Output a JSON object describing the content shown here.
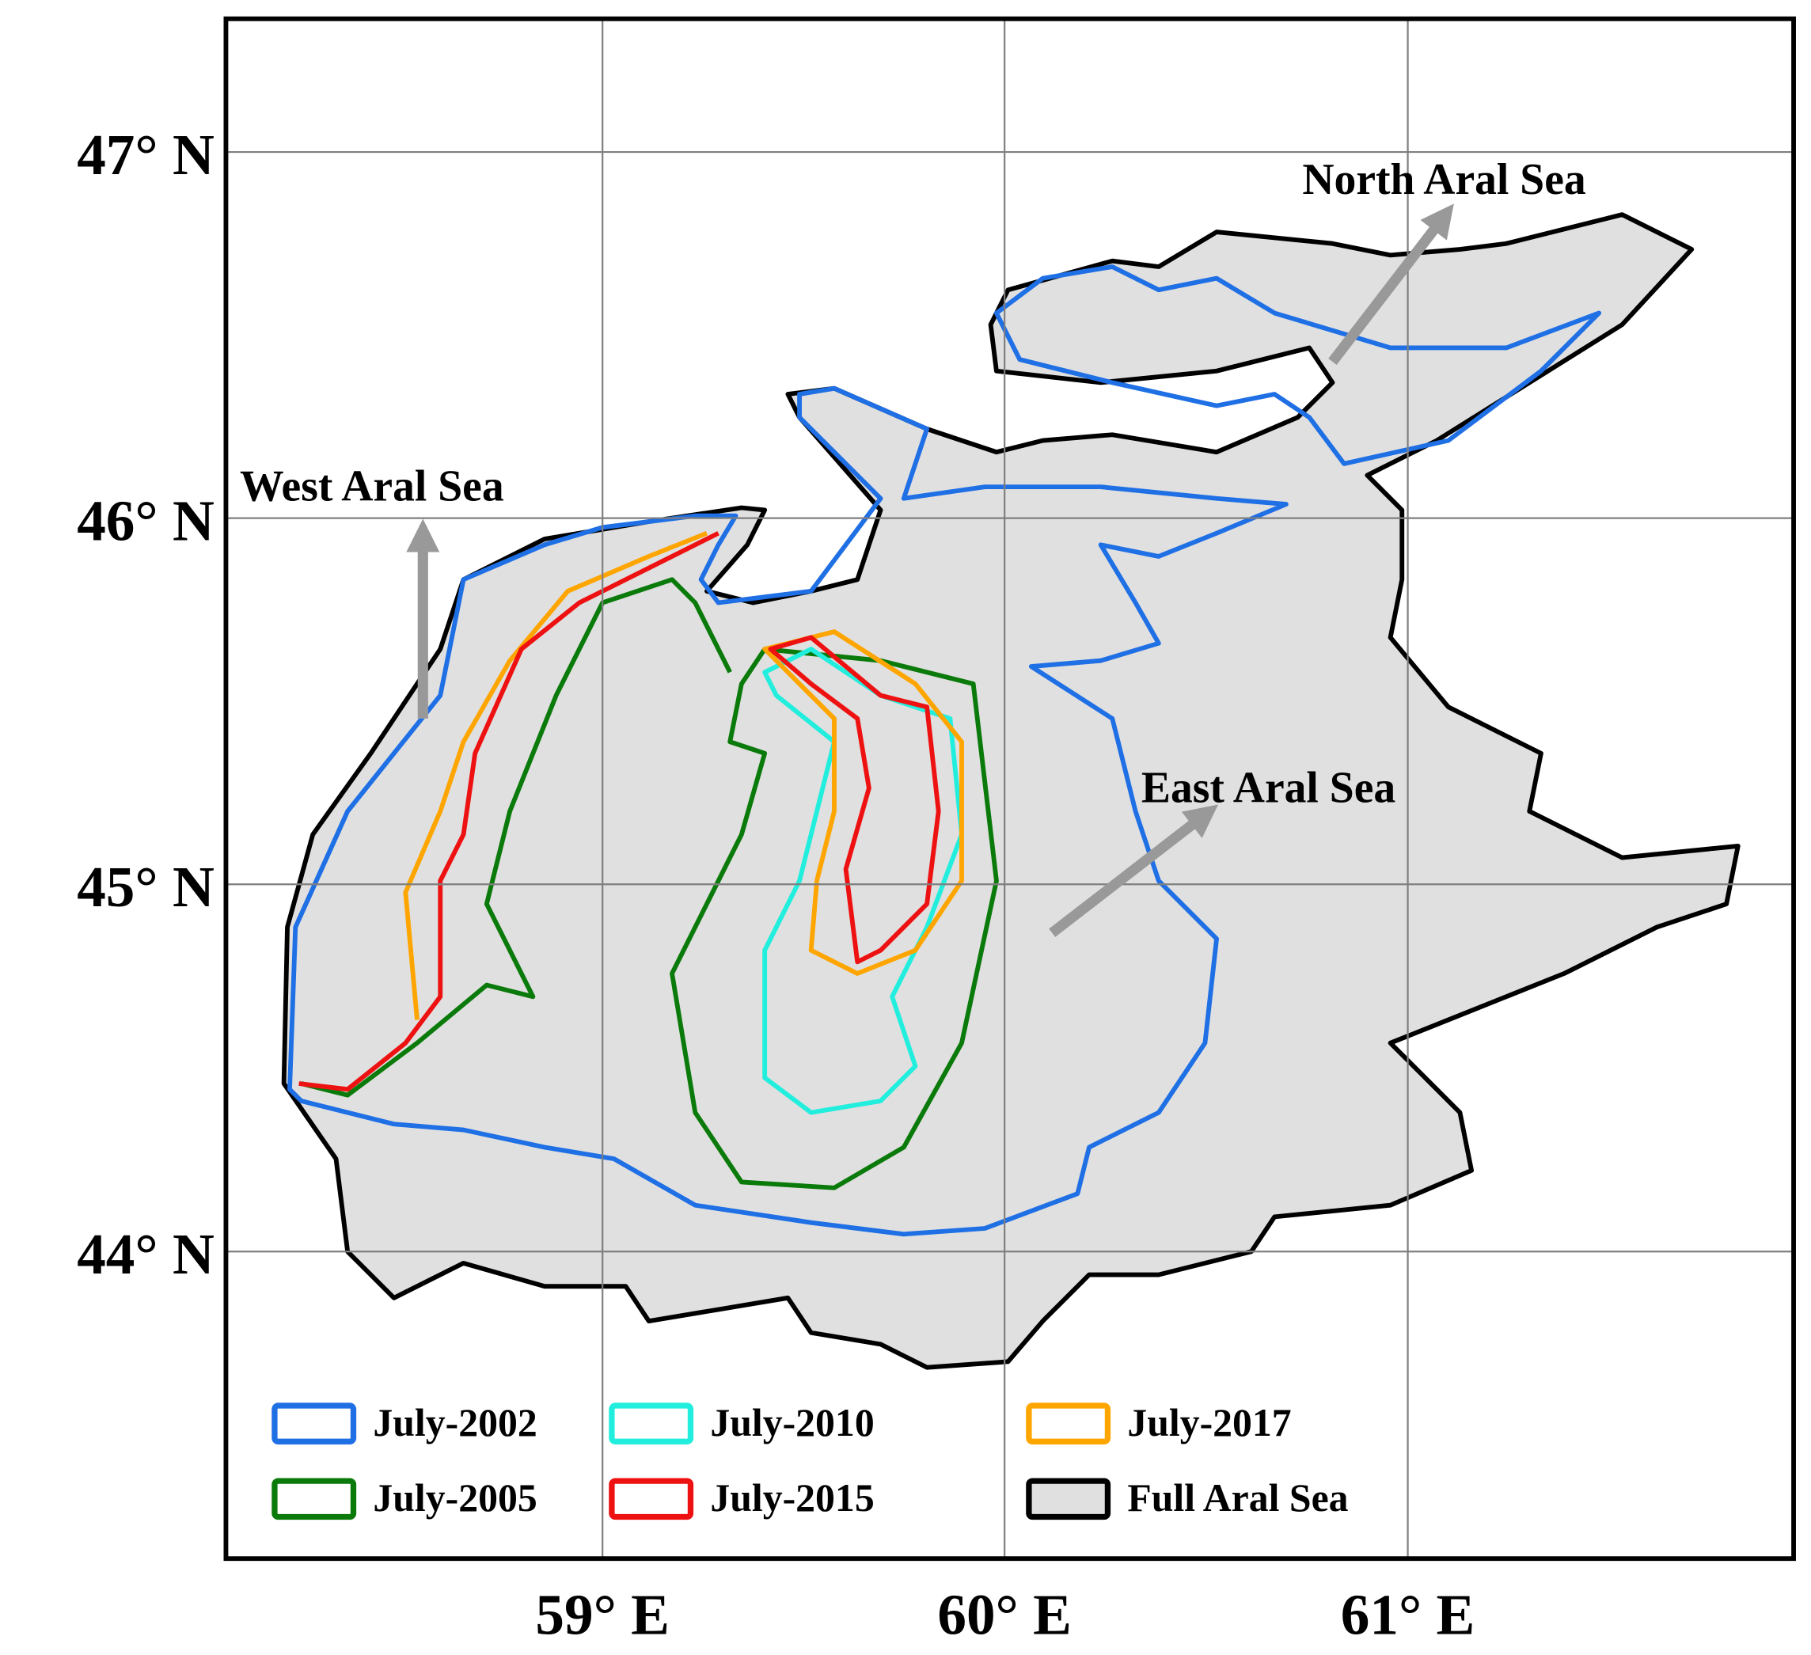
{
  "map": {
    "lat_labels": [
      "47° N",
      "46° N",
      "45° N",
      "44° N"
    ],
    "lon_labels": [
      "59° E",
      "60° E",
      "61° E"
    ],
    "annotations": [
      "West Aral Sea",
      "North Aral Sea",
      "East Aral Sea"
    ],
    "legend": [
      {
        "name": "July-2002",
        "color": "#1f6fe5"
      },
      {
        "name": "July-2005",
        "color": "#0a7a0a"
      },
      {
        "name": "July-2010",
        "color": "#22eedd"
      },
      {
        "name": "July-2015",
        "color": "#ee1111"
      },
      {
        "name": "July-2017",
        "color": "#ffa500"
      },
      {
        "name": "Full Aral Sea",
        "color": "#000000"
      }
    ]
  }
}
